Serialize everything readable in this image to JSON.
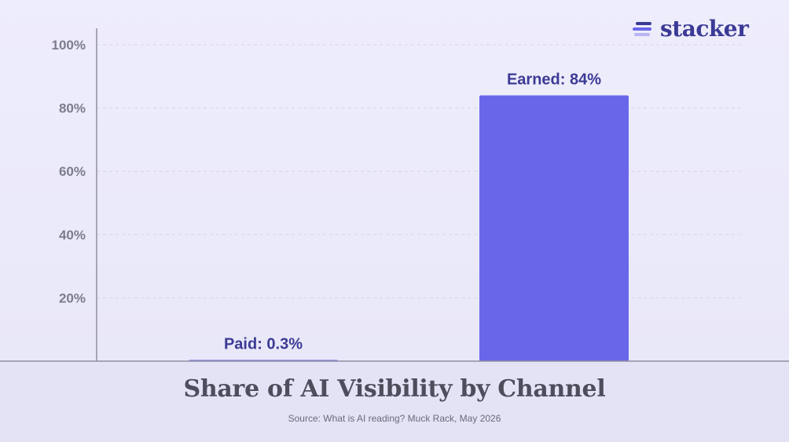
{
  "chart_data": {
    "type": "bar",
    "categories": [
      "Paid",
      "Earned"
    ],
    "values": [
      0.3,
      84
    ],
    "data_labels": [
      "Paid: 0.3%",
      "Earned: 84%"
    ],
    "title": "Share of AI Visibility by Channel",
    "subtitle": "Source: What is AI reading? Muck Rack, May 2026",
    "xlabel": "",
    "ylabel": "",
    "ylim": [
      0,
      100
    ],
    "yticks": [
      20,
      40,
      60,
      80,
      100
    ],
    "ytick_labels": [
      "20%",
      "40%",
      "60%",
      "80%",
      "100%"
    ],
    "grid": true,
    "legend": "none",
    "colors": {
      "bar": "#6966ea",
      "axis": "#8f8fa0",
      "grid": "#d6d5e8",
      "label": "#3b3a96"
    }
  },
  "branding": {
    "logo_text": "stacker",
    "logo_icon": "stacked-lines-icon",
    "logo_colors": [
      "#3b3a96",
      "#6966ea",
      "#b9b6f5"
    ]
  }
}
